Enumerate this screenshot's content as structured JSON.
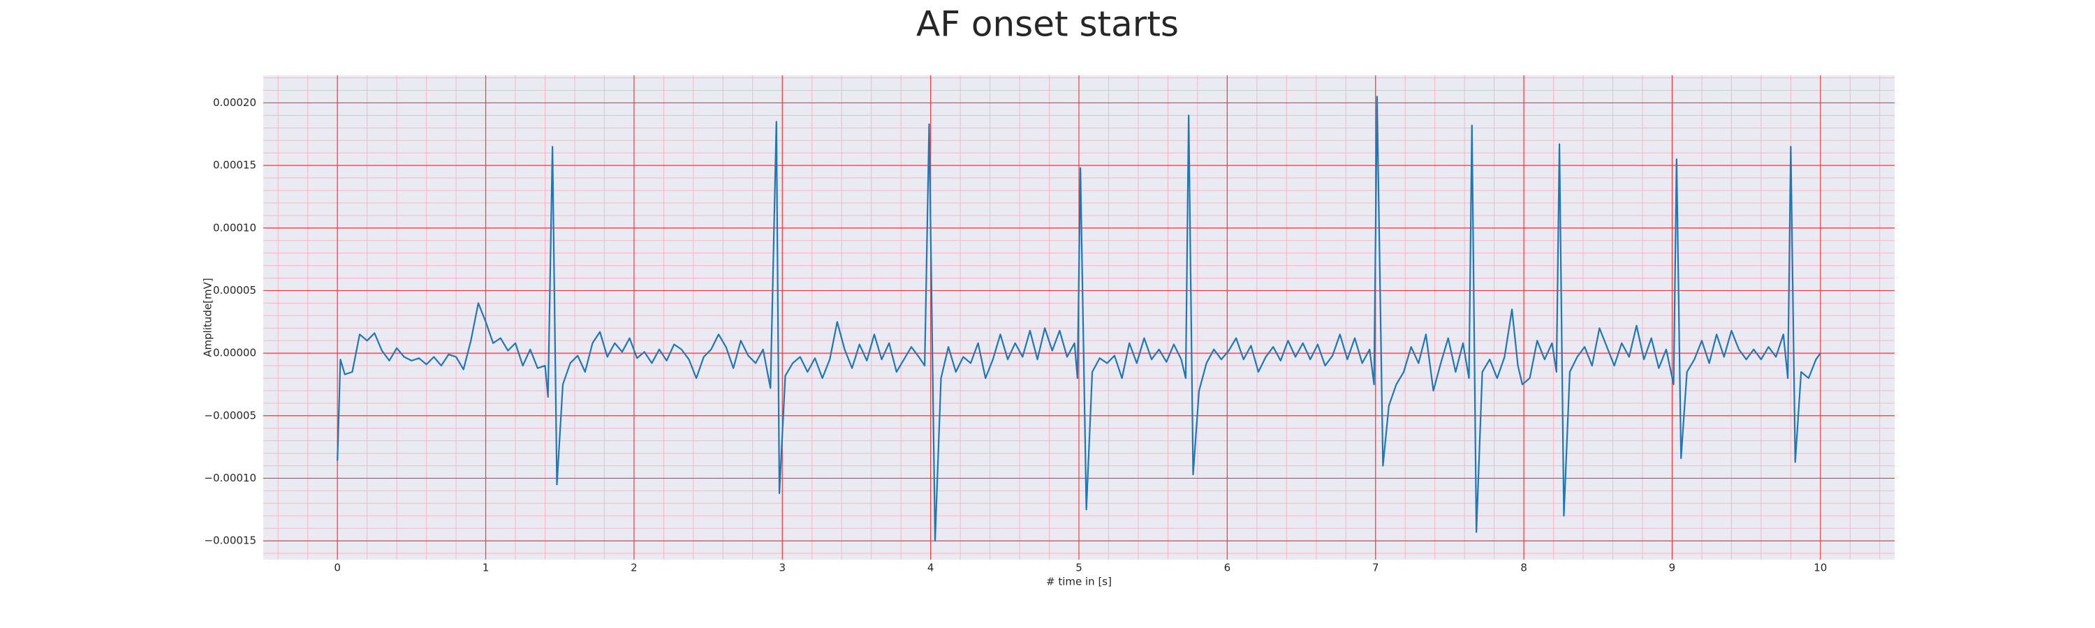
{
  "chart_data": {
    "type": "line",
    "title": "AF onset starts",
    "x_label": "# time in [s]",
    "y_label": "Amplitude[mV]",
    "xlim": [
      -0.5,
      10.5
    ],
    "ylim": [
      -0.000165,
      0.000222
    ],
    "xticks": [
      0,
      1,
      2,
      3,
      4,
      5,
      6,
      7,
      8,
      9,
      10
    ],
    "yticks": [
      {
        "value": -0.00015,
        "label": "−0.00015"
      },
      {
        "value": -0.0001,
        "label": "−0.00010"
      },
      {
        "value": -5e-05,
        "label": "−0.00005"
      },
      {
        "value": 0,
        "label": "0.00000"
      },
      {
        "value": 5e-05,
        "label": "0.00005"
      },
      {
        "value": 0.0001,
        "label": "0.00010"
      },
      {
        "value": 0.00015,
        "label": "0.00015"
      },
      {
        "value": 0.0002,
        "label": "0.00020"
      }
    ],
    "grid": true,
    "minor_grid": true,
    "x": [
      0,
      0.02,
      0.05,
      0.1,
      0.15,
      0.2,
      0.25,
      0.3,
      0.35,
      0.4,
      0.45,
      0.5,
      0.55,
      0.6,
      0.65,
      0.7,
      0.75,
      0.8,
      0.85,
      0.9,
      0.95,
      1.0,
      1.05,
      1.1,
      1.15,
      1.2,
      1.25,
      1.3,
      1.35,
      1.4,
      1.42,
      1.45,
      1.48,
      1.52,
      1.57,
      1.62,
      1.67,
      1.72,
      1.77,
      1.82,
      1.87,
      1.92,
      1.97,
      2.02,
      2.07,
      2.12,
      2.17,
      2.22,
      2.27,
      2.32,
      2.37,
      2.42,
      2.47,
      2.52,
      2.57,
      2.62,
      2.67,
      2.72,
      2.77,
      2.82,
      2.87,
      2.92,
      2.96,
      2.98,
      3.02,
      3.07,
      3.12,
      3.17,
      3.22,
      3.27,
      3.32,
      3.37,
      3.42,
      3.47,
      3.52,
      3.57,
      3.62,
      3.67,
      3.72,
      3.77,
      3.82,
      3.87,
      3.92,
      3.96,
      3.99,
      4.03,
      4.07,
      4.12,
      4.17,
      4.22,
      4.27,
      4.32,
      4.37,
      4.42,
      4.47,
      4.52,
      4.57,
      4.62,
      4.67,
      4.72,
      4.77,
      4.82,
      4.87,
      4.92,
      4.97,
      4.99,
      5.01,
      5.05,
      5.09,
      5.14,
      5.19,
      5.24,
      5.29,
      5.34,
      5.39,
      5.44,
      5.49,
      5.54,
      5.59,
      5.64,
      5.69,
      5.72,
      5.74,
      5.77,
      5.81,
      5.86,
      5.91,
      5.96,
      6.01,
      6.06,
      6.11,
      6.16,
      6.21,
      6.26,
      6.31,
      6.36,
      6.41,
      6.46,
      6.51,
      6.56,
      6.61,
      6.66,
      6.71,
      6.76,
      6.81,
      6.86,
      6.91,
      6.96,
      6.99,
      7.01,
      7.05,
      7.09,
      7.14,
      7.19,
      7.24,
      7.29,
      7.34,
      7.39,
      7.44,
      7.49,
      7.54,
      7.59,
      7.63,
      7.65,
      7.68,
      7.72,
      7.77,
      7.82,
      7.87,
      7.92,
      7.96,
      7.99,
      8.04,
      8.09,
      8.14,
      8.19,
      8.22,
      8.24,
      8.27,
      8.31,
      8.36,
      8.41,
      8.46,
      8.51,
      8.56,
      8.61,
      8.66,
      8.71,
      8.76,
      8.81,
      8.86,
      8.91,
      8.96,
      9.01,
      9.03,
      9.06,
      9.1,
      9.15,
      9.2,
      9.25,
      9.3,
      9.35,
      9.4,
      9.45,
      9.5,
      9.55,
      9.6,
      9.65,
      9.7,
      9.75,
      9.78,
      9.8,
      9.83,
      9.87,
      9.92,
      9.97,
      10.0
    ],
    "series": [
      {
        "color": "#1f77b4",
        "values": [
          -8.6e-05,
          -5e-06,
          -1.7e-05,
          -1.5e-05,
          1.5e-05,
          1e-05,
          1.6e-05,
          2e-06,
          -6e-06,
          4e-06,
          -3e-06,
          -6e-06,
          -4e-06,
          -9e-06,
          -3e-06,
          -1e-05,
          -1e-06,
          -3e-06,
          -1.3e-05,
          1e-05,
          4e-05,
          2.5e-05,
          8e-06,
          1.2e-05,
          2e-06,
          8e-06,
          -1e-05,
          3e-06,
          -1.2e-05,
          -1e-05,
          -3.5e-05,
          0.000165,
          -0.000105,
          -2.5e-05,
          -8e-06,
          -2e-06,
          -1.5e-05,
          8e-06,
          1.7e-05,
          -3e-06,
          8e-06,
          1e-06,
          1.2e-05,
          -4e-06,
          1e-06,
          -8e-06,
          3e-06,
          -6e-06,
          7e-06,
          3e-06,
          -5e-06,
          -2e-05,
          -3e-06,
          3e-06,
          1.5e-05,
          5e-06,
          -1.2e-05,
          1e-05,
          -2e-06,
          -8e-06,
          3e-06,
          -2.8e-05,
          0.000185,
          -0.000112,
          -1.8e-05,
          -8e-06,
          -3e-06,
          -1.5e-05,
          -4e-06,
          -2e-05,
          -5e-06,
          2.5e-05,
          3e-06,
          -1.2e-05,
          7e-06,
          -6e-06,
          1.5e-05,
          -5e-06,
          8e-06,
          -1.5e-05,
          -5e-06,
          5e-06,
          -3e-06,
          -1e-05,
          0.000183,
          -0.00015,
          -2e-05,
          5e-06,
          -1.5e-05,
          -3e-06,
          -8e-06,
          8e-06,
          -2e-05,
          -5e-06,
          1.5e-05,
          -5e-06,
          8e-06,
          -3e-06,
          1.8e-05,
          -5e-06,
          2e-05,
          2e-06,
          1.8e-05,
          -3e-06,
          8e-06,
          -2e-05,
          0.000148,
          -0.000125,
          -1.5e-05,
          -4e-06,
          -8e-06,
          -2e-06,
          -2e-05,
          8e-06,
          -8e-06,
          1.2e-05,
          -5e-06,
          3e-06,
          -7e-06,
          7e-06,
          -5e-06,
          -2e-05,
          0.00019,
          -9.7e-05,
          -3e-05,
          -8e-06,
          3e-06,
          -5e-06,
          2e-06,
          1.2e-05,
          -5e-06,
          6e-06,
          -1.5e-05,
          -3e-06,
          5e-06,
          -6e-06,
          1e-05,
          -3e-06,
          8e-06,
          -5e-06,
          7e-06,
          -1e-05,
          -2e-06,
          1.5e-05,
          -5e-06,
          1.2e-05,
          -8e-06,
          3e-06,
          -2.5e-05,
          0.000205,
          -9e-05,
          -4.2e-05,
          -2.5e-05,
          -1.5e-05,
          5e-06,
          -8e-06,
          1.5e-05,
          -3e-05,
          -8e-06,
          1.2e-05,
          -1.5e-05,
          8e-06,
          -2e-05,
          0.000182,
          -0.000143,
          -1.5e-05,
          -5e-06,
          -2e-05,
          -3e-06,
          3.5e-05,
          -1e-05,
          -2.5e-05,
          -2e-05,
          1e-05,
          -5e-06,
          8e-06,
          -1.5e-05,
          0.000167,
          -0.00013,
          -1.5e-05,
          -3e-06,
          5e-06,
          -1e-05,
          2e-05,
          5e-06,
          -1e-05,
          8e-06,
          -3e-06,
          2.2e-05,
          -5e-06,
          1.2e-05,
          -1.2e-05,
          3e-06,
          -2.5e-05,
          0.000155,
          -8.4e-05,
          -1.5e-05,
          -5e-06,
          1e-05,
          -8e-06,
          1.5e-05,
          -3e-06,
          1.8e-05,
          3e-06,
          -5e-06,
          3e-06,
          -5e-06,
          5e-06,
          -3e-06,
          1.5e-05,
          -2e-05,
          0.000165,
          -8.7e-05,
          -1.5e-05,
          -2e-05,
          -5e-06,
          0
        ]
      }
    ]
  }
}
